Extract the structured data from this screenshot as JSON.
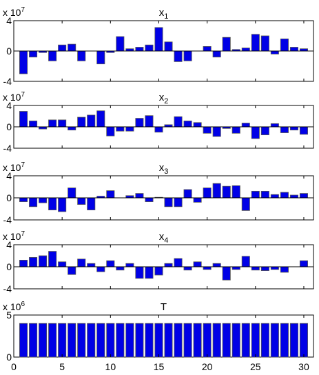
{
  "figure": {
    "colors": {
      "bar_fill": "#0000e6",
      "bar_edge": "#555555",
      "axes": "#000000",
      "background": "#ffffff"
    }
  },
  "chart_data": [
    {
      "type": "bar",
      "title": "x",
      "title_subscript": "1",
      "exponent_base": "x 10",
      "exponent_power": "7",
      "x": [
        1,
        2,
        3,
        4,
        5,
        6,
        7,
        8,
        9,
        10,
        11,
        12,
        13,
        14,
        15,
        16,
        17,
        18,
        19,
        20,
        21,
        22,
        23,
        24,
        25,
        26,
        27,
        28,
        29,
        30
      ],
      "values": [
        -3.0,
        -0.8,
        -0.2,
        -1.3,
        0.8,
        0.9,
        -1.3,
        0,
        -1.7,
        -0.2,
        1.9,
        0.3,
        0.5,
        0.8,
        3.1,
        1.2,
        -1.4,
        -1.3,
        0,
        0.6,
        -0.8,
        1.8,
        0.2,
        0.4,
        2.2,
        2.0,
        -0.4,
        1.6,
        0.5,
        0.3
      ],
      "xlim": [
        0,
        31
      ],
      "ylim": [
        -4,
        4
      ],
      "yticks": [
        "4",
        "0",
        "-4"
      ],
      "xticks": [
        "5",
        "10",
        "15",
        "20",
        "25",
        "30"
      ],
      "show_xticklabels": false
    },
    {
      "type": "bar",
      "title": "x",
      "title_subscript": "2",
      "exponent_base": "x 10",
      "exponent_power": "7",
      "x": [
        1,
        2,
        3,
        4,
        5,
        6,
        7,
        8,
        9,
        10,
        11,
        12,
        13,
        14,
        15,
        16,
        17,
        18,
        19,
        20,
        21,
        22,
        23,
        24,
        25,
        26,
        27,
        28,
        29,
        30
      ],
      "values": [
        2.9,
        1.1,
        -0.4,
        1.3,
        1.3,
        -0.6,
        1.8,
        2.2,
        3.0,
        -1.7,
        -0.8,
        -0.8,
        1.6,
        2.1,
        -1.0,
        0.4,
        1.9,
        1.1,
        0.8,
        -1.2,
        -1.8,
        -0.3,
        -1.2,
        0.7,
        -2.2,
        -1.5,
        0.6,
        -1.1,
        -0.6,
        -1.4
      ],
      "xlim": [
        0,
        31
      ],
      "ylim": [
        -4,
        4
      ],
      "yticks": [
        "4",
        "0",
        "-4"
      ],
      "xticks": [
        "5",
        "10",
        "15",
        "20",
        "25",
        "30"
      ],
      "show_xticklabels": false
    },
    {
      "type": "bar",
      "title": "x",
      "title_subscript": "3",
      "exponent_base": "x 10",
      "exponent_power": "7",
      "x": [
        1,
        2,
        3,
        4,
        5,
        6,
        7,
        8,
        9,
        10,
        11,
        12,
        13,
        14,
        15,
        16,
        17,
        18,
        19,
        20,
        21,
        22,
        23,
        24,
        25,
        26,
        27,
        28,
        29,
        30
      ],
      "values": [
        -0.7,
        -1.6,
        -0.9,
        -2.2,
        -2.5,
        1.8,
        -1.2,
        -2.2,
        0.3,
        1.3,
        0,
        0.4,
        0.8,
        -0.7,
        0.1,
        -1.6,
        -1.6,
        1.5,
        -0.8,
        1.8,
        2.6,
        2.1,
        2.2,
        -2.3,
        1.2,
        1.2,
        0.6,
        1.0,
        0.5,
        0.8
      ],
      "xlim": [
        0,
        31
      ],
      "ylim": [
        -4,
        4
      ],
      "yticks": [
        "4",
        "0",
        "-4"
      ],
      "xticks": [
        "5",
        "10",
        "15",
        "20",
        "25",
        "30"
      ],
      "show_xticklabels": false
    },
    {
      "type": "bar",
      "title": "x",
      "title_subscript": "4",
      "exponent_base": "x 10",
      "exponent_power": "7",
      "x": [
        1,
        2,
        3,
        4,
        5,
        6,
        7,
        8,
        9,
        10,
        11,
        12,
        13,
        14,
        15,
        16,
        17,
        18,
        19,
        20,
        21,
        22,
        23,
        24,
        25,
        26,
        27,
        28,
        29,
        30
      ],
      "values": [
        1.2,
        1.7,
        2.0,
        2.8,
        0.9,
        -1.4,
        1.4,
        0.6,
        -0.9,
        1.1,
        -0.6,
        0.6,
        -2.1,
        -2.1,
        -1.5,
        0.6,
        1.5,
        -0.6,
        0.9,
        -0.5,
        0.6,
        -2.4,
        -0.5,
        1.9,
        -0.6,
        -0.7,
        -0.5,
        -1.0,
        0,
        1.1
      ],
      "xlim": [
        0,
        31
      ],
      "ylim": [
        -4,
        4
      ],
      "yticks": [
        "4",
        "0",
        "-4"
      ],
      "xticks": [
        "5",
        "10",
        "15",
        "20",
        "25",
        "30"
      ],
      "show_xticklabels": false
    },
    {
      "type": "bar",
      "title": "T",
      "title_subscript": "",
      "exponent_base": "x 10",
      "exponent_power": "6",
      "x": [
        1,
        2,
        3,
        4,
        5,
        6,
        7,
        8,
        9,
        10,
        11,
        12,
        13,
        14,
        15,
        16,
        17,
        18,
        19,
        20,
        21,
        22,
        23,
        24,
        25,
        26,
        27,
        28,
        29,
        30
      ],
      "values": [
        4,
        4,
        4,
        4,
        4,
        4,
        4,
        4,
        4,
        4,
        4,
        4,
        4,
        4,
        4,
        4,
        4,
        4,
        4,
        4,
        4,
        4,
        4,
        4,
        4,
        4,
        4,
        4,
        4,
        4
      ],
      "xlim": [
        0,
        31
      ],
      "ylim": [
        0,
        5
      ],
      "yticks": [
        "5",
        "0"
      ],
      "xticks": [
        "0",
        "5",
        "10",
        "15",
        "20",
        "25",
        "30"
      ],
      "show_xticklabels": true
    }
  ]
}
